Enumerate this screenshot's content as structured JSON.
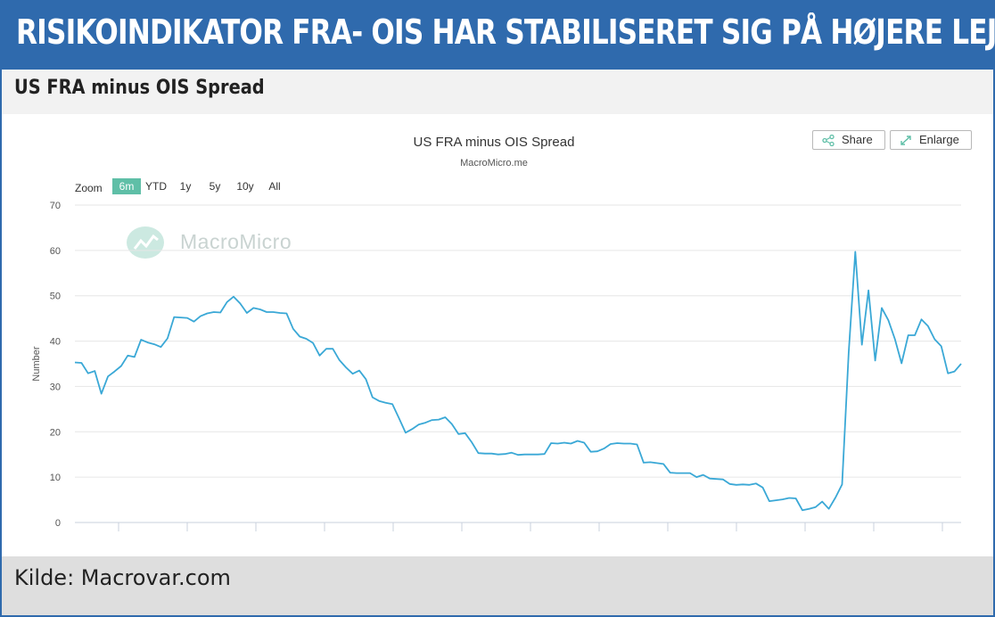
{
  "banner": {
    "title": "RISIKOINDIKATOR FRA- OIS HAR STABILISERET SIG PÅ HØJERE LEJE"
  },
  "subheader": {
    "title": "US FRA minus OIS Spread"
  },
  "chart_header": {
    "title": "US FRA minus OIS Spread",
    "subtitle": "MacroMicro.me"
  },
  "toolbar": {
    "share_label": "Share",
    "share_icon": "share-icon",
    "enlarge_label": "Enlarge",
    "enlarge_icon": "expand-icon"
  },
  "zoom": {
    "label": "Zoom",
    "options": [
      "6m",
      "YTD",
      "1y",
      "5y",
      "10y",
      "All"
    ],
    "selected": "6m"
  },
  "watermark": {
    "text": "MacroMicro"
  },
  "footer": {
    "source": "Kilde: Macrovar.com"
  },
  "colors": {
    "brand_blue": "#2f6aad",
    "line": "#3aa8d6",
    "zoom_active": "#5fbfa7"
  },
  "chart_data": {
    "type": "line",
    "title": "US FRA minus OIS Spread",
    "subtitle": "MacroMicro.me",
    "ylabel": "Number",
    "ylim": [
      0,
      70
    ],
    "yticks": [
      0,
      10,
      20,
      30,
      40,
      50,
      60,
      70
    ],
    "grid": true,
    "series": [
      {
        "values": [
          35.3,
          35.2,
          32.9,
          33.4,
          28.4,
          32.2,
          33.3,
          34.5,
          36.8,
          36.5,
          40.3,
          39.7,
          39.3,
          38.7,
          40.6,
          45.3,
          45.2,
          45.1,
          44.3,
          45.5,
          46.1,
          46.4,
          46.3,
          48.6,
          49.8,
          48.3,
          46.2,
          47.3,
          47.0,
          46.4,
          46.4,
          46.2,
          46.1,
          42.7,
          41.0,
          40.5,
          39.6,
          36.8,
          38.3,
          38.3,
          35.8,
          34.2,
          32.8,
          33.5,
          31.6,
          27.6,
          26.8,
          26.4,
          26.1,
          23.0,
          19.8,
          20.6,
          21.6,
          22.0,
          22.6,
          22.7,
          23.2,
          21.7,
          19.5,
          19.7,
          17.7,
          15.3,
          15.2,
          15.2,
          15.0,
          15.1,
          15.4,
          14.9,
          15.0,
          15.0,
          15.0,
          15.1,
          17.5,
          17.4,
          17.6,
          17.4,
          18.0,
          17.6,
          15.6,
          15.7,
          16.3,
          17.3,
          17.5,
          17.4,
          17.4,
          17.2,
          13.2,
          13.3,
          13.1,
          12.9,
          11.0,
          10.9,
          10.9,
          10.9,
          10.0,
          10.5,
          9.7,
          9.6,
          9.5,
          8.5,
          8.3,
          8.4,
          8.3,
          8.6,
          7.7,
          4.7,
          4.9,
          5.1,
          5.4,
          5.3,
          2.7,
          3.0,
          3.4,
          4.6,
          3.0,
          5.5,
          8.4,
          37.5,
          59.7,
          39.2,
          51.2,
          35.7,
          47.3,
          44.6,
          40.4,
          35.1,
          41.3,
          41.3,
          44.8,
          43.3,
          40.4,
          38.9,
          32.9,
          33.3,
          35.0
        ]
      }
    ]
  }
}
